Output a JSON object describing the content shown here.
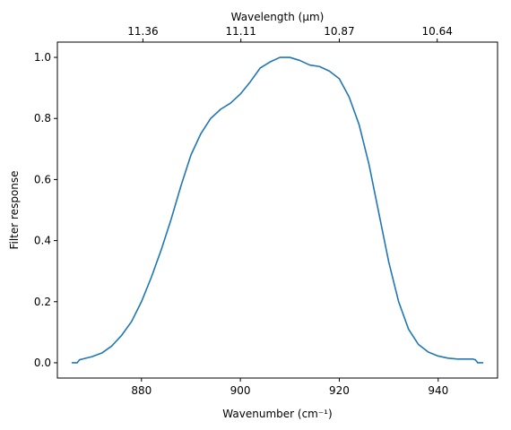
{
  "chart_data": {
    "type": "line",
    "title": "",
    "xlabel": "Wavenumber (cm⁻¹)",
    "ylabel": "Filter response",
    "top_xlabel": "Wavelength (μm)",
    "xlim": [
      863,
      952
    ],
    "ylim": [
      -0.05,
      1.05
    ],
    "x_ticks": [
      880,
      900,
      920,
      940
    ],
    "x_tick_labels": [
      "880",
      "900",
      "920",
      "940"
    ],
    "y_ticks": [
      0.0,
      0.2,
      0.4,
      0.6,
      0.8,
      1.0
    ],
    "y_tick_labels": [
      "0.0",
      "0.2",
      "0.4",
      "0.6",
      "0.8",
      "1.0"
    ],
    "top_ticks_wavenumber": [
      880.3,
      900.1,
      920.0,
      939.8
    ],
    "top_tick_labels": [
      "11.36",
      "11.11",
      "10.87",
      "10.64"
    ],
    "grid": false,
    "line_color": "#1f77b4",
    "series": [
      {
        "x": [
          866,
          867,
          867.5,
          868,
          870,
          872,
          874,
          876,
          878,
          880,
          882,
          884,
          886,
          888,
          890,
          892,
          894,
          896,
          898,
          900,
          902,
          904,
          906,
          908,
          910,
          912,
          914,
          916,
          918,
          920,
          922,
          924,
          926,
          928,
          930,
          932,
          934,
          936,
          938,
          940,
          942,
          944,
          945,
          946,
          947,
          947.5,
          948,
          948.5,
          949
        ],
        "y": [
          0.0,
          0.0,
          0.01,
          0.012,
          0.02,
          0.032,
          0.055,
          0.09,
          0.135,
          0.2,
          0.28,
          0.37,
          0.47,
          0.58,
          0.68,
          0.75,
          0.8,
          0.83,
          0.85,
          0.88,
          0.92,
          0.965,
          0.985,
          1.0,
          1.0,
          0.99,
          0.975,
          0.97,
          0.955,
          0.93,
          0.87,
          0.78,
          0.65,
          0.49,
          0.33,
          0.2,
          0.11,
          0.06,
          0.035,
          0.022,
          0.015,
          0.012,
          0.012,
          0.012,
          0.012,
          0.01,
          0.0,
          0.0,
          0.0
        ]
      }
    ]
  }
}
